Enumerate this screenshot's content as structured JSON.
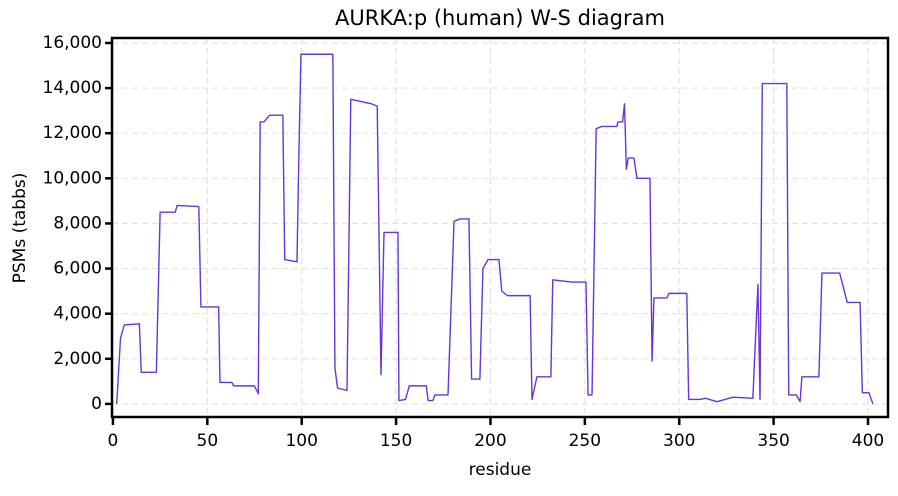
{
  "chart_data": {
    "type": "line",
    "title": "AURKA:p (human) W-S diagram",
    "x_label": "residue",
    "y_label": "PSMs (tabbs)",
    "color": "#6a35d4",
    "grid": true,
    "xlim": [
      -0.5,
      410.6
    ],
    "ylim": [
      -580,
      16220
    ],
    "xticks": [
      0,
      50,
      100,
      150,
      200,
      250,
      300,
      350,
      400
    ],
    "yticks": [
      0,
      {
        "value": 2000,
        "label": "2,000"
      },
      {
        "value": 4000,
        "label": "4,000"
      },
      {
        "value": 6000,
        "label": "6,000"
      },
      {
        "value": 8000,
        "label": "8,000"
      },
      {
        "value": 10000,
        "label": "10,000"
      },
      {
        "value": 12000,
        "label": "12,000"
      },
      {
        "value": 14000,
        "label": "14,000"
      },
      {
        "value": 16000,
        "label": "16,000"
      }
    ],
    "x": [
      2,
      4,
      6,
      14,
      15,
      23,
      25,
      33,
      34,
      45.5,
      46.6,
      56,
      56.7,
      63,
      64,
      75,
      77,
      78,
      80,
      83,
      90,
      91,
      97.5,
      98.5,
      99.6,
      116.5,
      117.6,
      119,
      124,
      126,
      137,
      140,
      142,
      143.6,
      151,
      151.5,
      155,
      157,
      166,
      167,
      169.5,
      170.6,
      177.5,
      180.7,
      184,
      188.6,
      190,
      194.4,
      196,
      198.7,
      204.5,
      206,
      209,
      221,
      222,
      224.6,
      232,
      233,
      243,
      250.6,
      251.7,
      253.8,
      256,
      259,
      267,
      267.5,
      270,
      271,
      272,
      273,
      276,
      277.6,
      284.5,
      285.6,
      286.6,
      293.5,
      294.6,
      304,
      305,
      311,
      314,
      320,
      328.5,
      339,
      341.7,
      342.8,
      344,
      357,
      358,
      362,
      364,
      365,
      374,
      375.6,
      385,
      389,
      395.8,
      397,
      400.5,
      402.6
    ],
    "values": [
      0,
      2900,
      3500,
      3550,
      1400,
      1400,
      8500,
      8500,
      8800,
      8750,
      4300,
      4300,
      950,
      950,
      800,
      800,
      450,
      12500,
      12500,
      12800,
      12800,
      6400,
      6300,
      11000,
      15500,
      15500,
      1600,
      700,
      600,
      13500,
      13300,
      13200,
      1300,
      7600,
      7600,
      150,
      200,
      800,
      800,
      150,
      150,
      400,
      400,
      8100,
      8200,
      8200,
      1100,
      1100,
      6000,
      6400,
      6400,
      5000,
      4800,
      4800,
      200,
      1200,
      1200,
      5500,
      5400,
      5400,
      400,
      400,
      12200,
      12300,
      12300,
      12500,
      12500,
      13300,
      10400,
      10900,
      10900,
      10000,
      10000,
      1900,
      4700,
      4700,
      4900,
      4900,
      200,
      200,
      250,
      100,
      300,
      250,
      5300,
      200,
      14200,
      14200,
      400,
      400,
      100,
      1200,
      1200,
      5800,
      5800,
      4500,
      4500,
      500,
      500,
      0
    ]
  }
}
